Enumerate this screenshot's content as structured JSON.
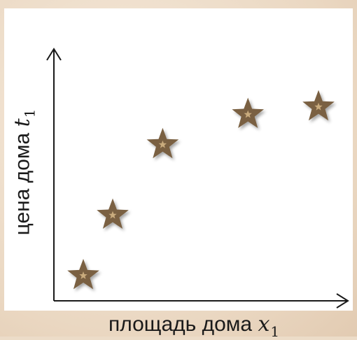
{
  "colors": {
    "background": "#ecdcc8",
    "plot_area": "#ffffff",
    "axis": "#1a1a1a",
    "marker_fill": "#7a6142",
    "marker_highlight": "#c9ab7d"
  },
  "chart_data": {
    "type": "scatter",
    "marker": "star",
    "grid": false,
    "legend": "none",
    "xlabel": {
      "text": "площадь дома",
      "var": "x",
      "sub": "1"
    },
    "ylabel": {
      "text": "цена  дома",
      "var": "t",
      "sub": "1"
    },
    "x_ticks": [],
    "y_ticks": [],
    "xlim": [
      0,
      10
    ],
    "ylim": [
      0,
      10
    ],
    "points": [
      {
        "x": 1.0,
        "y": 1.0
      },
      {
        "x": 2.0,
        "y": 3.4
      },
      {
        "x": 3.7,
        "y": 6.2
      },
      {
        "x": 6.6,
        "y": 7.4
      },
      {
        "x": 9.0,
        "y": 7.7
      }
    ]
  }
}
